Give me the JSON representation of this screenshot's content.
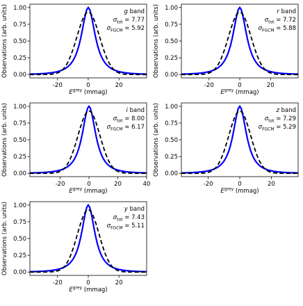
{
  "figure": {
    "ylabel": "Observations (arb. units)",
    "xlabel_sym": "E",
    "xlabel_sup": "grey",
    "xlabel_unit": " (mmag)",
    "sigma_sym": "σ",
    "tot_sub": "tot",
    "fgcm_sub": "FGCM",
    "band_word": "band",
    "colors": {
      "data": "#0000ff",
      "model": "#000000",
      "axes": "#000000"
    }
  },
  "chart_data": [
    {
      "type": "line",
      "band": "g",
      "sigma_tot": "7.77",
      "sigma_fgcm": "5.92",
      "xlim": [
        -38,
        38
      ],
      "ylim": [
        -0.05,
        1.05
      ],
      "xticks": [
        -20,
        0,
        20
      ],
      "yticks": [
        0.0,
        0.25,
        0.5,
        0.75,
        1.0
      ],
      "yticklabels": [
        "0.00",
        "0.25",
        "0.50",
        "0.75",
        "1.00"
      ],
      "series": [],
      "peak": 1.0
    },
    {
      "type": "line",
      "band": "r",
      "sigma_tot": "7.72",
      "sigma_fgcm": "5.88",
      "xlim": [
        -38,
        38
      ],
      "ylim": [
        -0.05,
        1.05
      ],
      "xticks": [
        -20,
        0,
        20
      ],
      "yticks": [
        0.0,
        0.25,
        0.5,
        0.75,
        1.0
      ],
      "yticklabels": [
        "0.00",
        "0.25",
        "0.50",
        "0.75",
        "1.00"
      ],
      "series": [],
      "peak": 1.0
    },
    {
      "type": "line",
      "band": "i",
      "sigma_tot": "8.00",
      "sigma_fgcm": "6.17",
      "xlim": [
        -41,
        40
      ],
      "ylim": [
        -0.05,
        1.05
      ],
      "xticks": [
        -20,
        0,
        20,
        40
      ],
      "yticks": [
        0.0,
        0.25,
        0.5,
        0.75,
        1.0
      ],
      "yticklabels": [
        "0.00",
        "0.25",
        "0.50",
        "0.75",
        "1.00"
      ],
      "series": [],
      "peak": 1.0
    },
    {
      "type": "line",
      "band": "z",
      "sigma_tot": "7.29",
      "sigma_fgcm": "5.29",
      "xlim": [
        -37,
        37
      ],
      "ylim": [
        -0.05,
        1.05
      ],
      "xticks": [
        -20,
        0,
        20
      ],
      "yticks": [
        0.0,
        0.25,
        0.5,
        0.75,
        1.0
      ],
      "yticklabels": [
        "0.00",
        "0.25",
        "0.50",
        "0.75",
        "1.00"
      ],
      "series": [],
      "peak": 1.0
    },
    {
      "type": "line",
      "band": "y",
      "sigma_tot": "7.43",
      "sigma_fgcm": "5.11",
      "xlim": [
        -38,
        38
      ],
      "ylim": [
        -0.05,
        1.05
      ],
      "xticks": [
        -20,
        0,
        20
      ],
      "yticks": [
        0.0,
        0.25,
        0.5,
        0.75,
        1.0
      ],
      "yticklabels": [
        "0.00",
        "0.25",
        "0.50",
        "0.75",
        "1.00"
      ],
      "series": [],
      "peak": 1.0
    }
  ]
}
